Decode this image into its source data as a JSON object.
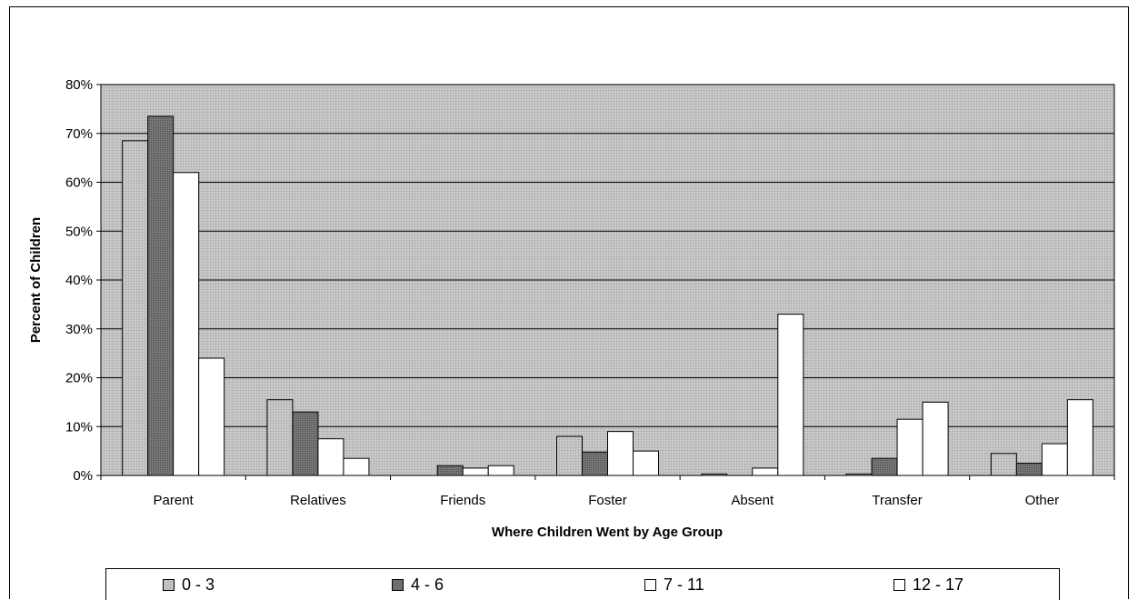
{
  "chart_data": {
    "type": "bar",
    "title": "",
    "xlabel": "Where Children Went by Age Group",
    "ylabel": "Percent of Children",
    "ylim": [
      0,
      80
    ],
    "y_ticks": [
      "0%",
      "10%",
      "20%",
      "30%",
      "40%",
      "50%",
      "60%",
      "70%",
      "80%"
    ],
    "grid": true,
    "legend_position": "bottom",
    "categories": [
      "Parent",
      "Relatives",
      "Friends",
      "Foster",
      "Absent",
      "Transfer",
      "Other"
    ],
    "series": [
      {
        "name": "0 - 3",
        "color": "#c8c8c8",
        "values": [
          68.5,
          15.5,
          0,
          8,
          0.3,
          0.3,
          4.5
        ]
      },
      {
        "name": "4 - 6",
        "color": "#6e6e6e",
        "values": [
          73.5,
          13,
          2,
          4.8,
          0,
          3.5,
          2.5
        ]
      },
      {
        "name": "7 - 11",
        "color": "#ffffff",
        "values": [
          62,
          7.5,
          1.5,
          9,
          1.5,
          11.5,
          6.5
        ]
      },
      {
        "name": "12 - 17",
        "color": "#ffffff",
        "values": [
          24,
          3.5,
          2,
          5,
          33,
          15,
          15.5
        ]
      }
    ],
    "plot_background": "#c0c0c0"
  }
}
